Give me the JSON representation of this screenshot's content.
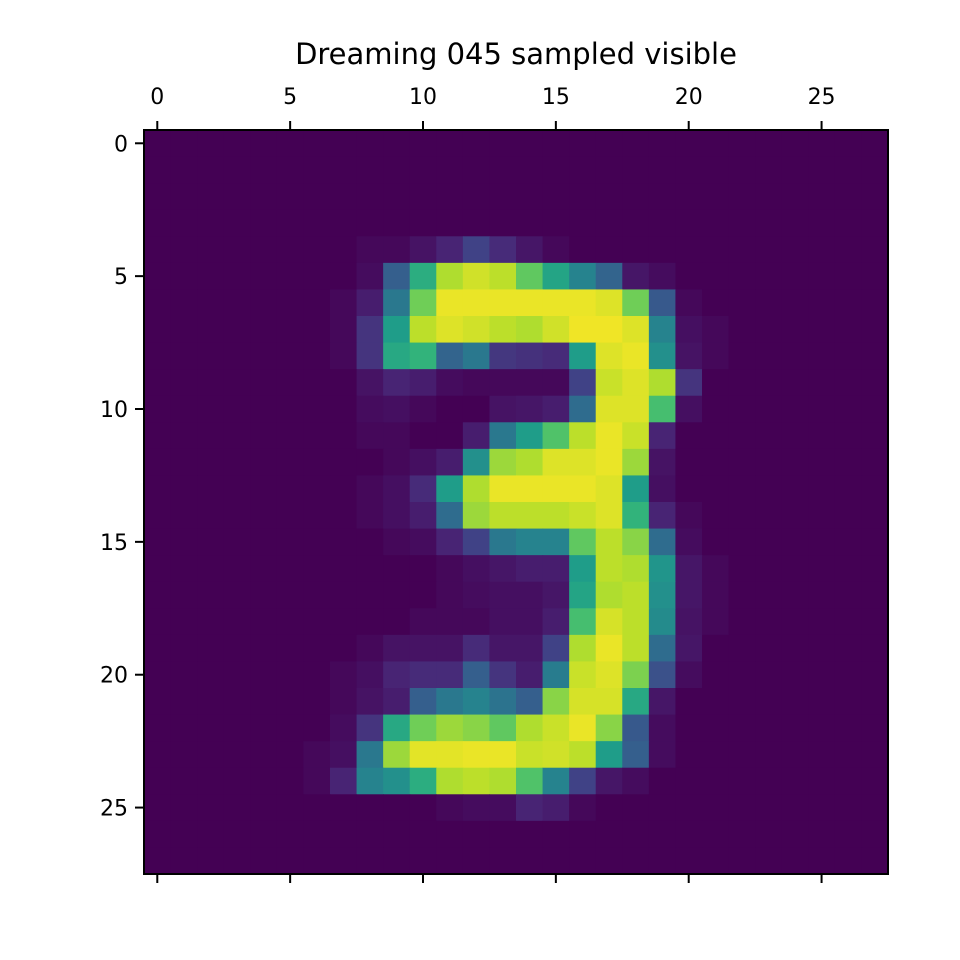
{
  "chart_data": {
    "type": "heatmap",
    "title": "Dreaming 045 sampled visible",
    "colormap": "viridis",
    "vmin": 0,
    "vmax": 1,
    "rows": 28,
    "cols": 28,
    "xlim": [
      -0.5,
      27.5
    ],
    "ylim": [
      27.5,
      -0.5
    ],
    "x_ticks": [
      0,
      5,
      10,
      15,
      20,
      25
    ],
    "y_ticks": [
      0,
      5,
      10,
      15,
      20,
      25
    ],
    "x_tick_labels": [
      "0",
      "5",
      "10",
      "15",
      "20",
      "25"
    ],
    "y_tick_labels": [
      "0",
      "5",
      "10",
      "15",
      "20",
      "25"
    ],
    "x_tick_labels_position": "top",
    "grid": false,
    "values": [
      [
        0,
        0,
        0,
        0,
        0,
        0,
        0,
        0,
        0,
        0,
        0,
        0,
        0,
        0,
        0,
        0,
        0,
        0,
        0,
        0,
        0,
        0,
        0,
        0,
        0,
        0,
        0,
        0
      ],
      [
        0,
        0,
        0,
        0,
        0,
        0,
        0,
        0,
        0,
        0,
        0,
        0,
        0,
        0,
        0,
        0,
        0,
        0,
        0,
        0,
        0,
        0,
        0,
        0,
        0,
        0,
        0,
        0
      ],
      [
        0,
        0,
        0,
        0,
        0,
        0,
        0,
        0,
        0,
        0,
        0,
        0,
        0,
        0,
        0,
        0,
        0,
        0,
        0,
        0,
        0,
        0,
        0,
        0,
        0,
        0,
        0,
        0
      ],
      [
        0,
        0,
        0,
        0,
        0,
        0,
        0,
        0,
        0,
        0,
        0,
        0,
        0,
        0,
        0,
        0,
        0,
        0,
        0,
        0,
        0,
        0,
        0,
        0,
        0,
        0,
        0,
        0
      ],
      [
        0,
        0,
        0,
        0,
        0,
        0,
        0,
        0,
        0.02,
        0.02,
        0.05,
        0.1,
        0.2,
        0.12,
        0.06,
        0.02,
        0,
        0,
        0,
        0,
        0,
        0,
        0,
        0,
        0,
        0,
        0,
        0
      ],
      [
        0,
        0,
        0,
        0,
        0,
        0,
        0,
        0,
        0.03,
        0.3,
        0.62,
        0.88,
        0.93,
        0.9,
        0.75,
        0.58,
        0.45,
        0.32,
        0.06,
        0.03,
        0,
        0,
        0,
        0,
        0,
        0,
        0,
        0
      ],
      [
        0,
        0,
        0,
        0,
        0,
        0,
        0,
        0.02,
        0.08,
        0.4,
        0.78,
        0.97,
        0.97,
        0.97,
        0.97,
        0.97,
        0.97,
        0.95,
        0.78,
        0.28,
        0.02,
        0,
        0,
        0,
        0,
        0,
        0,
        0
      ],
      [
        0,
        0,
        0,
        0,
        0,
        0,
        0,
        0.02,
        0.15,
        0.55,
        0.9,
        0.95,
        0.93,
        0.9,
        0.88,
        0.93,
        0.98,
        0.98,
        0.95,
        0.45,
        0.04,
        0.02,
        0,
        0,
        0,
        0,
        0,
        0
      ],
      [
        0,
        0,
        0,
        0,
        0,
        0,
        0,
        0.02,
        0.15,
        0.6,
        0.65,
        0.32,
        0.4,
        0.16,
        0.14,
        0.12,
        0.55,
        0.95,
        0.97,
        0.5,
        0.05,
        0.02,
        0,
        0,
        0,
        0,
        0,
        0
      ],
      [
        0,
        0,
        0,
        0,
        0,
        0,
        0,
        0,
        0.05,
        0.1,
        0.08,
        0.03,
        0.02,
        0.02,
        0.02,
        0.02,
        0.2,
        0.92,
        0.95,
        0.88,
        0.15,
        0,
        0,
        0,
        0,
        0,
        0,
        0
      ],
      [
        0,
        0,
        0,
        0,
        0,
        0,
        0,
        0,
        0.03,
        0.04,
        0.02,
        0,
        0,
        0.05,
        0.06,
        0.08,
        0.35,
        0.95,
        0.95,
        0.7,
        0.04,
        0,
        0,
        0,
        0,
        0,
        0,
        0
      ],
      [
        0,
        0,
        0,
        0,
        0,
        0,
        0,
        0,
        0.02,
        0.02,
        0,
        0,
        0.08,
        0.4,
        0.55,
        0.72,
        0.9,
        0.97,
        0.92,
        0.1,
        0,
        0,
        0,
        0,
        0,
        0,
        0,
        0
      ],
      [
        0,
        0,
        0,
        0,
        0,
        0,
        0,
        0,
        0,
        0.02,
        0.04,
        0.08,
        0.5,
        0.85,
        0.88,
        0.95,
        0.95,
        0.97,
        0.85,
        0.05,
        0,
        0,
        0,
        0,
        0,
        0,
        0,
        0
      ],
      [
        0,
        0,
        0,
        0,
        0,
        0,
        0,
        0,
        0.02,
        0.04,
        0.12,
        0.55,
        0.88,
        0.97,
        0.97,
        0.97,
        0.97,
        0.95,
        0.55,
        0.04,
        0,
        0,
        0,
        0,
        0,
        0,
        0,
        0
      ],
      [
        0,
        0,
        0,
        0,
        0,
        0,
        0,
        0,
        0.02,
        0.04,
        0.08,
        0.35,
        0.85,
        0.9,
        0.9,
        0.9,
        0.92,
        0.95,
        0.65,
        0.1,
        0.02,
        0,
        0,
        0,
        0,
        0,
        0,
        0
      ],
      [
        0,
        0,
        0,
        0,
        0,
        0,
        0,
        0,
        0,
        0.02,
        0.03,
        0.1,
        0.2,
        0.4,
        0.45,
        0.45,
        0.75,
        0.9,
        0.82,
        0.35,
        0.03,
        0,
        0,
        0,
        0,
        0,
        0,
        0
      ],
      [
        0,
        0,
        0,
        0,
        0,
        0,
        0,
        0,
        0,
        0,
        0,
        0.02,
        0.04,
        0.06,
        0.08,
        0.08,
        0.55,
        0.9,
        0.88,
        0.52,
        0.06,
        0.02,
        0,
        0,
        0,
        0,
        0,
        0
      ],
      [
        0,
        0,
        0,
        0,
        0,
        0,
        0,
        0,
        0,
        0,
        0,
        0.02,
        0.03,
        0.04,
        0.04,
        0.06,
        0.58,
        0.88,
        0.9,
        0.5,
        0.06,
        0.02,
        0,
        0,
        0,
        0,
        0,
        0
      ],
      [
        0,
        0,
        0,
        0,
        0,
        0,
        0,
        0,
        0,
        0,
        0.02,
        0.02,
        0.02,
        0.04,
        0.04,
        0.08,
        0.7,
        0.94,
        0.9,
        0.48,
        0.05,
        0.02,
        0,
        0,
        0,
        0,
        0,
        0
      ],
      [
        0,
        0,
        0,
        0,
        0,
        0,
        0,
        0,
        0.02,
        0.05,
        0.05,
        0.05,
        0.12,
        0.06,
        0.06,
        0.2,
        0.88,
        0.97,
        0.9,
        0.35,
        0.06,
        0,
        0,
        0,
        0,
        0,
        0,
        0
      ],
      [
        0,
        0,
        0,
        0,
        0,
        0,
        0,
        0.02,
        0.04,
        0.1,
        0.12,
        0.12,
        0.3,
        0.15,
        0.08,
        0.42,
        0.92,
        0.95,
        0.8,
        0.25,
        0.03,
        0,
        0,
        0,
        0,
        0,
        0,
        0
      ],
      [
        0,
        0,
        0,
        0,
        0,
        0,
        0,
        0.02,
        0.05,
        0.08,
        0.3,
        0.4,
        0.45,
        0.38,
        0.3,
        0.82,
        0.94,
        0.94,
        0.6,
        0.06,
        0,
        0,
        0,
        0,
        0,
        0,
        0,
        0
      ],
      [
        0,
        0,
        0,
        0,
        0,
        0,
        0,
        0.03,
        0.15,
        0.6,
        0.78,
        0.85,
        0.82,
        0.75,
        0.88,
        0.92,
        0.97,
        0.82,
        0.28,
        0.03,
        0,
        0,
        0,
        0,
        0,
        0,
        0,
        0
      ],
      [
        0,
        0,
        0,
        0,
        0,
        0,
        0.02,
        0.04,
        0.4,
        0.85,
        0.96,
        0.96,
        0.97,
        0.97,
        0.92,
        0.93,
        0.9,
        0.55,
        0.3,
        0.03,
        0,
        0,
        0,
        0,
        0,
        0,
        0,
        0
      ],
      [
        0,
        0,
        0,
        0,
        0,
        0,
        0.02,
        0.1,
        0.45,
        0.5,
        0.62,
        0.88,
        0.9,
        0.88,
        0.72,
        0.45,
        0.2,
        0.06,
        0.03,
        0,
        0,
        0,
        0,
        0,
        0,
        0,
        0,
        0
      ],
      [
        0,
        0,
        0,
        0,
        0,
        0,
        0,
        0,
        0,
        0,
        0,
        0.02,
        0.03,
        0.03,
        0.1,
        0.08,
        0.02,
        0,
        0,
        0,
        0,
        0,
        0,
        0,
        0,
        0,
        0,
        0
      ],
      [
        0,
        0,
        0,
        0,
        0,
        0,
        0,
        0,
        0,
        0,
        0,
        0,
        0,
        0,
        0,
        0,
        0,
        0,
        0,
        0,
        0,
        0,
        0,
        0,
        0,
        0,
        0,
        0
      ],
      [
        0,
        0,
        0,
        0,
        0,
        0,
        0,
        0,
        0,
        0,
        0,
        0,
        0,
        0,
        0,
        0,
        0,
        0,
        0,
        0,
        0,
        0,
        0,
        0,
        0,
        0,
        0,
        0
      ]
    ]
  }
}
